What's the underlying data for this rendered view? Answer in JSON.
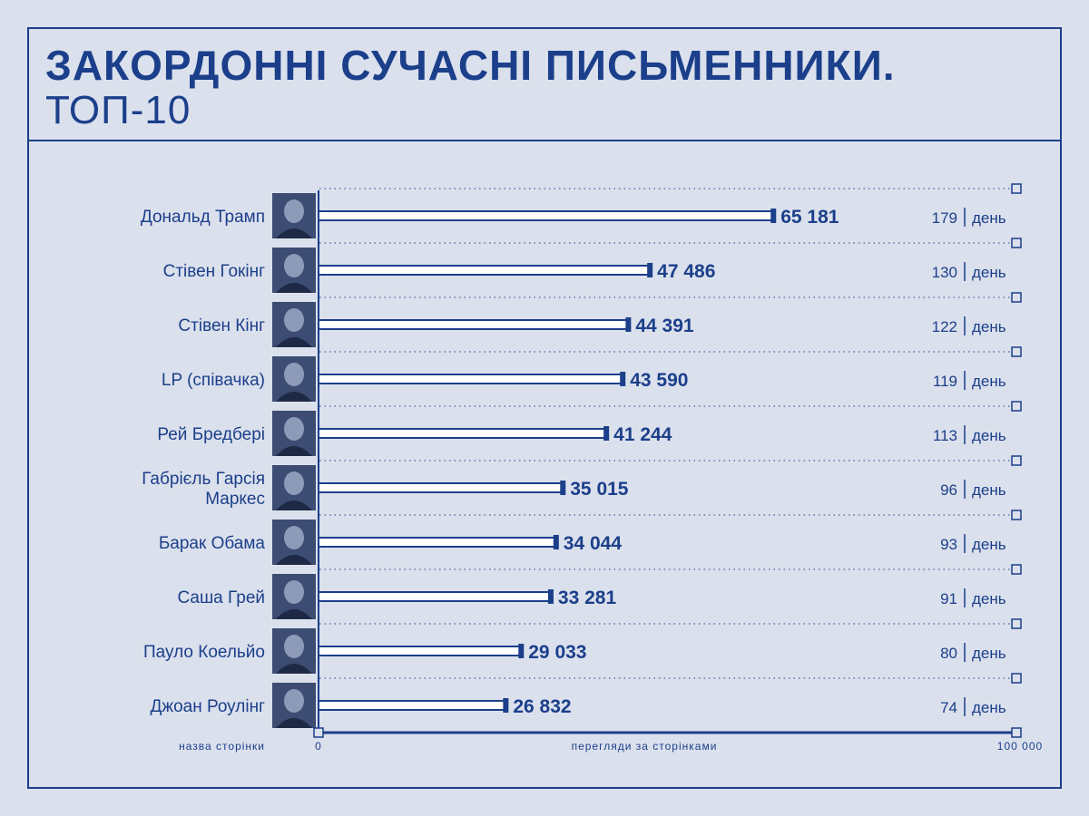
{
  "header": {
    "title": "ЗАКОРДОННІ СУЧАСНІ ПИСЬМЕННИКИ.",
    "subtitle": "ТОП-10"
  },
  "colors": {
    "accent": "#1b3f8a",
    "background": "#dbe0ed",
    "bar_fill": "#ffffff"
  },
  "chart_data": {
    "type": "bar",
    "orientation": "horizontal",
    "title": "ЗАКОРДОННІ СУЧАСНІ ПИСЬМЕННИКИ. ТОП-10",
    "xlabel": "перегляди за сторінками",
    "ylabel": "назва сторінки",
    "xlim": [
      0,
      100000
    ],
    "x_tick_labels": [
      "0",
      "100 000"
    ],
    "day_unit": "день",
    "grid": "dotted horizontal separators",
    "categories": [
      [
        "Дональд Трамп"
      ],
      [
        "Стівен Гокінг"
      ],
      [
        "Стівен Кінг"
      ],
      [
        "LP (співачка)"
      ],
      [
        "Рей Бредбері"
      ],
      [
        "Габрієль Гарсія",
        "Маркес"
      ],
      [
        "Барак Обама"
      ],
      [
        "Саша Грей"
      ],
      [
        "Пауло Коельйо"
      ],
      [
        "Джоан Роулінг"
      ]
    ],
    "values": [
      65181,
      47486,
      44391,
      43590,
      41244,
      35015,
      34044,
      33281,
      29033,
      26832
    ],
    "value_labels": [
      "65 181",
      "47 486",
      "44 391",
      "43 590",
      "41 244",
      "35 015",
      "34 044",
      "33 281",
      "29 033",
      "26 832"
    ],
    "per_day": [
      179,
      130,
      122,
      119,
      113,
      96,
      93,
      91,
      80,
      74
    ]
  }
}
